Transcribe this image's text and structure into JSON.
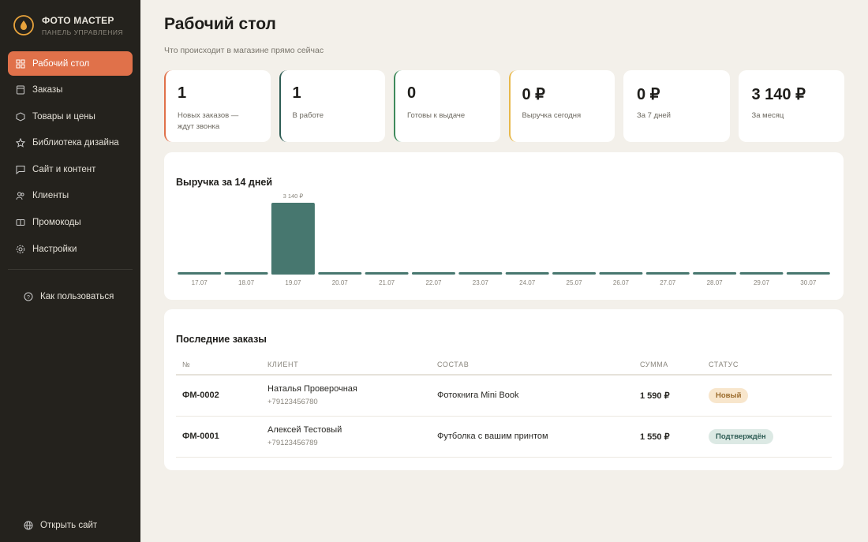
{
  "sidebar": {
    "brand": {
      "title": "ФОТО МАСТЕР",
      "subtitle": "ПАНЕЛЬ УПРАВЛЕНИЯ"
    },
    "nav": [
      "Рабочий стол",
      "Заказы",
      "Товары и цены",
      "Библиотека дизайна",
      "Сайт и контент",
      "Клиенты",
      "Промокоды",
      "Настройки"
    ],
    "help": "Как пользоваться",
    "open_site": "Открыть сайт"
  },
  "header": {
    "title": "Рабочий стол",
    "subtitle": "Что происходит в магазине прямо сейчас"
  },
  "stats": [
    {
      "value": "1",
      "label": "Новых заказов — ждут звонка",
      "color": "#e0714a"
    },
    {
      "value": "1",
      "label": "В работе",
      "color": "#2f5d55"
    },
    {
      "value": "0",
      "label": "Готовы к выдаче",
      "color": "#3f8a5c"
    },
    {
      "value": "0 ₽",
      "label": "Выручка сегодня",
      "color": "#e8b84a"
    },
    {
      "value": "0 ₽",
      "label": "За 7 дней",
      "color": null
    },
    {
      "value": "3 140 ₽",
      "label": "За месяц",
      "color": null
    }
  ],
  "chart_data": {
    "type": "bar",
    "title": "Выручка за 14 дней",
    "categories": [
      "17.07",
      "18.07",
      "19.07",
      "20.07",
      "21.07",
      "22.07",
      "23.07",
      "24.07",
      "25.07",
      "26.07",
      "27.07",
      "28.07",
      "29.07",
      "30.07"
    ],
    "values": [
      0,
      0,
      3140,
      0,
      0,
      0,
      0,
      0,
      0,
      0,
      0,
      0,
      0,
      0
    ],
    "value_labels": [
      null,
      null,
      "3 140 ₽",
      null,
      null,
      null,
      null,
      null,
      null,
      null,
      null,
      null,
      null,
      null
    ],
    "color": "#47776f"
  },
  "orders": {
    "title": "Последние заказы",
    "columns": [
      "№",
      "КЛИЕНТ",
      "СОСТАВ",
      "СУММА",
      "СТАТУС"
    ],
    "rows": [
      {
        "id": "ФМ-0002",
        "client": "Наталья Проверочная",
        "phone": "+79123456780",
        "items": "Фотокнига Mini Book",
        "sum": "1 590 ₽",
        "status": "Новый",
        "status_bg": "#f8e6cc",
        "status_fg": "#9a6a2a"
      },
      {
        "id": "ФМ-0001",
        "client": "Алексей Тестовый",
        "phone": "+79123456789",
        "items": "Футболка с вашим принтом",
        "sum": "1 550 ₽",
        "status": "Подтверждён",
        "status_bg": "#dce9e4",
        "status_fg": "#2f5d55"
      }
    ]
  }
}
